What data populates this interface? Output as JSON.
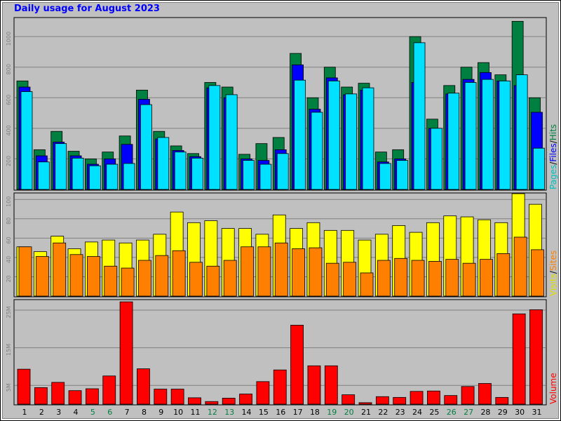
{
  "title": "Daily usage for August 2023",
  "colors": {
    "background": "#c0c0c0",
    "hits": "#008040",
    "files": "#0000ff",
    "pages": "#00e0ff",
    "visits": "#ffff00",
    "sites": "#ff8000",
    "volume": "#ff0000",
    "title": "#0000ff",
    "weekend_day_label": "#008040"
  },
  "chart_data": [
    {
      "type": "bar",
      "panel": "top",
      "legend": {
        "pages": "Pages",
        "files": "Files",
        "hits": "Hits",
        "sep1": "/",
        "sep2": "/"
      },
      "x": [
        1,
        2,
        3,
        4,
        5,
        6,
        7,
        8,
        9,
        10,
        11,
        12,
        13,
        14,
        15,
        16,
        17,
        18,
        19,
        20,
        21,
        22,
        23,
        24,
        25,
        26,
        27,
        28,
        29,
        30,
        31
      ],
      "y_ticks": [
        "200",
        "400",
        "600",
        "800",
        "1000"
      ],
      "ylim": [
        0,
        1120
      ],
      "series": [
        {
          "name": "Hits",
          "values": [
            710,
            260,
            380,
            250,
            200,
            245,
            350,
            650,
            380,
            285,
            235,
            700,
            670,
            230,
            300,
            340,
            890,
            600,
            800,
            670,
            695,
            245,
            260,
            1000,
            460,
            680,
            800,
            830,
            750,
            1100,
            600
          ]
        },
        {
          "name": "Files",
          "values": [
            670,
            220,
            310,
            220,
            165,
            200,
            295,
            590,
            330,
            255,
            215,
            665,
            600,
            200,
            190,
            260,
            815,
            525,
            730,
            620,
            650,
            180,
            200,
            700,
            400,
            625,
            720,
            765,
            710,
            680,
            505
          ]
        },
        {
          "name": "Pages",
          "values": [
            640,
            180,
            300,
            205,
            155,
            165,
            170,
            555,
            340,
            245,
            205,
            680,
            620,
            190,
            165,
            235,
            715,
            505,
            710,
            625,
            665,
            170,
            190,
            960,
            400,
            630,
            700,
            720,
            710,
            750,
            270
          ]
        }
      ]
    },
    {
      "type": "bar",
      "panel": "middle",
      "legend": {
        "visits": "Visits",
        "sites": "Sites",
        "sep": "/"
      },
      "x": [
        1,
        2,
        3,
        4,
        5,
        6,
        7,
        8,
        9,
        10,
        11,
        12,
        13,
        14,
        15,
        16,
        17,
        18,
        19,
        20,
        21,
        22,
        23,
        24,
        25,
        26,
        27,
        28,
        29,
        30,
        31
      ],
      "y_ticks": [
        "20",
        "40",
        "60",
        "80",
        "100"
      ],
      "ylim": [
        0,
        106
      ],
      "series": [
        {
          "name": "Visits",
          "values": [
            51,
            46,
            62,
            49,
            56,
            58,
            55,
            58,
            64,
            87,
            76,
            78,
            70,
            70,
            64,
            84,
            70,
            76,
            68,
            68,
            58,
            64,
            73,
            66,
            76,
            83,
            82,
            79,
            76,
            106,
            95
          ]
        },
        {
          "name": "Sites",
          "values": [
            51,
            41,
            55,
            43,
            41,
            31,
            29,
            37,
            42,
            47,
            35,
            31,
            37,
            51,
            51,
            55,
            49,
            50,
            34,
            35,
            24,
            37,
            39,
            37,
            36,
            38,
            34,
            38,
            44,
            61,
            48
          ]
        }
      ]
    },
    {
      "type": "bar",
      "panel": "bottom",
      "legend": {
        "volume": "Volume"
      },
      "x": [
        1,
        2,
        3,
        4,
        5,
        6,
        7,
        8,
        9,
        10,
        11,
        12,
        13,
        14,
        15,
        16,
        17,
        18,
        19,
        20,
        21,
        22,
        23,
        24,
        25,
        26,
        27,
        28,
        29,
        30,
        31
      ],
      "y_ticks": [
        "5M",
        "15M",
        "25M"
      ],
      "ylim": [
        0,
        27.6
      ],
      "series": [
        {
          "name": "Volume",
          "values": [
            9.3,
            4.4,
            5.8,
            3.6,
            4.1,
            7.5,
            27.2,
            9.4,
            4.0,
            4.0,
            1.7,
            0.7,
            1.6,
            2.7,
            6.0,
            9.1,
            21.0,
            10.2,
            10.2,
            2.5,
            0.4,
            2.0,
            1.8,
            3.4,
            3.5,
            2.3,
            4.7,
            5.5,
            1.8,
            24.0,
            25.1
          ]
        }
      ]
    }
  ],
  "x_axis_labels": [
    "1",
    "2",
    "3",
    "4",
    "5",
    "6",
    "7",
    "8",
    "9",
    "10",
    "11",
    "12",
    "13",
    "14",
    "15",
    "16",
    "17",
    "18",
    "19",
    "20",
    "21",
    "22",
    "23",
    "24",
    "25",
    "26",
    "27",
    "28",
    "29",
    "30",
    "31"
  ],
  "weekend_days": [
    5,
    6,
    12,
    13,
    19,
    20,
    26,
    27
  ]
}
